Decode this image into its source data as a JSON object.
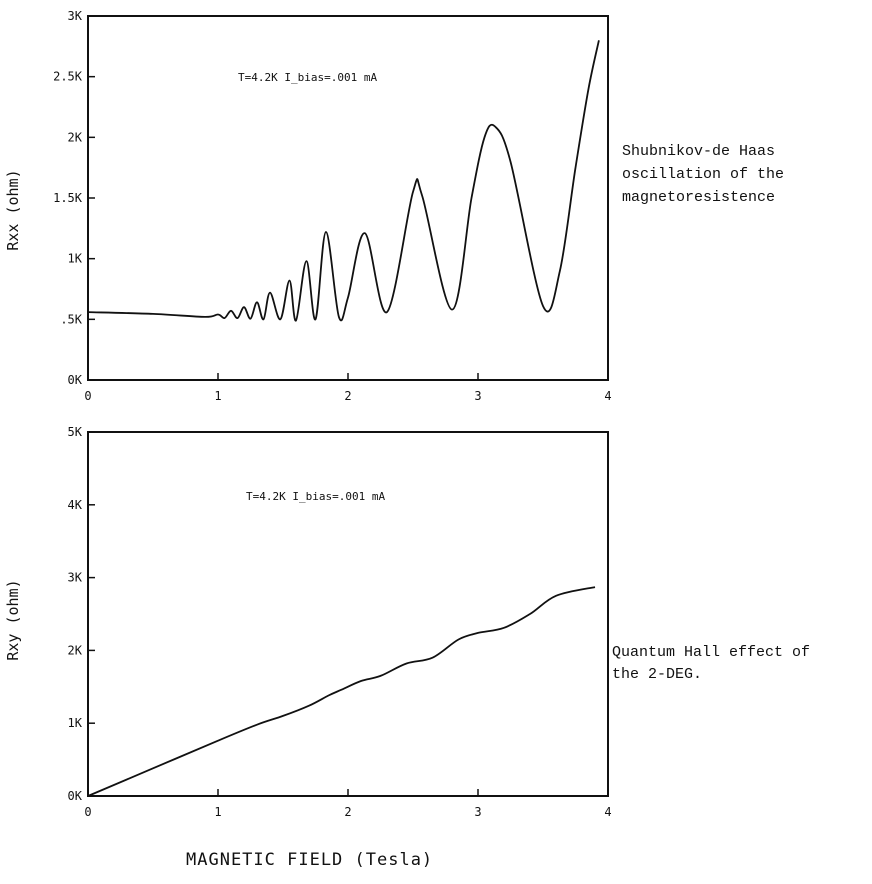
{
  "figure": {
    "xlabel": "MAGNETIC FIELD (Tesla)"
  },
  "chart_data": [
    {
      "type": "line",
      "ylabel": "Rxx (ohm)",
      "annotation": "T=4.2K  I_bias=.001 mA",
      "side_note": [
        "Shubnikov-de Haas",
        "oscillation of the",
        "magnetoresistence"
      ],
      "xlim": [
        0,
        4
      ],
      "ylim": [
        0,
        3000
      ],
      "x_ticks": [
        "0",
        "1",
        "2",
        "3",
        "4"
      ],
      "y_ticks": [
        "0K",
        ".5K",
        "1K",
        "1.5K",
        "2K",
        "2.5K",
        "3K"
      ],
      "series": [
        {
          "x": [
            0,
            0.5,
            0.9,
            1.0,
            1.05,
            1.1,
            1.15,
            1.2,
            1.25,
            1.3,
            1.35,
            1.4,
            1.48,
            1.55,
            1.6,
            1.68,
            1.75,
            1.83,
            1.93,
            2.0,
            2.13,
            2.3,
            2.5,
            2.57,
            2.8,
            2.95,
            3.05,
            3.13,
            3.25,
            3.5,
            3.63,
            3.75,
            3.85,
            3.93
          ],
          "y": [
            560,
            545,
            520,
            540,
            510,
            570,
            510,
            600,
            505,
            640,
            500,
            720,
            500,
            820,
            490,
            980,
            500,
            1220,
            520,
            680,
            1210,
            560,
            1550,
            1520,
            580,
            1500,
            2000,
            2090,
            1800,
            610,
            900,
            1750,
            2400,
            2800
          ]
        }
      ]
    },
    {
      "type": "line",
      "ylabel": "Rxy (ohm)",
      "annotation": "T=4.2K  I_bias=.001 mA",
      "side_note": [
        "Quantum Hall effect of",
        "the 2-DEG."
      ],
      "xlim": [
        0,
        4
      ],
      "ylim": [
        0,
        5000
      ],
      "x_ticks": [
        "0",
        "1",
        "2",
        "3",
        "4"
      ],
      "y_ticks": [
        "0K",
        "1K",
        "2K",
        "3K",
        "4K",
        "5K"
      ],
      "series": [
        {
          "x": [
            0,
            0.5,
            1.0,
            1.3,
            1.5,
            1.7,
            1.85,
            1.95,
            2.1,
            2.25,
            2.45,
            2.65,
            2.85,
            3.0,
            3.2,
            3.4,
            3.6,
            3.9
          ],
          "y": [
            0,
            380,
            760,
            980,
            1100,
            1240,
            1380,
            1460,
            1580,
            1650,
            1820,
            1900,
            2150,
            2240,
            2310,
            2500,
            2750,
            2870
          ]
        }
      ]
    }
  ]
}
